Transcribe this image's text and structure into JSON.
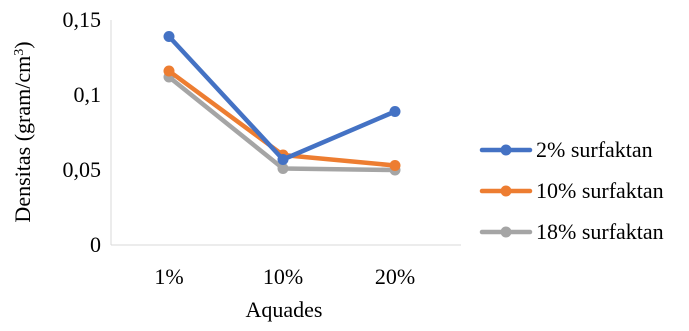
{
  "chart_data": {
    "type": "line",
    "categories": [
      "1%",
      "10%",
      "20%"
    ],
    "series": [
      {
        "name": "2% surfaktan",
        "values": [
          0.139,
          0.057,
          0.089
        ],
        "color": "#4472C4"
      },
      {
        "name": "10% surfaktan",
        "values": [
          0.116,
          0.06,
          0.053
        ],
        "color": "#ED7D31"
      },
      {
        "name": "18% surfaktan",
        "values": [
          0.112,
          0.051,
          0.05
        ],
        "color": "#A5A5A5"
      }
    ],
    "ylabel_main": "Densitas (gram/cm",
    "ylabel_sup": "3",
    "ylabel_close": ")",
    "xlabel": "Aquades",
    "ylim": [
      0,
      0.15
    ],
    "yticks": [
      {
        "value": 0,
        "label": "0"
      },
      {
        "value": 0.05,
        "label": "0,05"
      },
      {
        "value": 0.1,
        "label": "0,1"
      },
      {
        "value": 0.15,
        "label": "0,15"
      }
    ],
    "grid": false,
    "legend_position": "right"
  }
}
